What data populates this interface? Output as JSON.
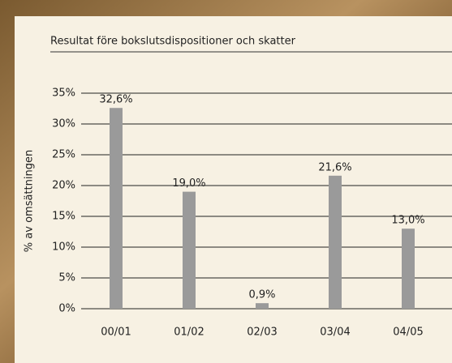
{
  "chart_data": {
    "type": "bar",
    "title": "Resultat före bokslutsdispositioner och skatter",
    "ylabel": "% av omsättningen",
    "categories": [
      "00/01",
      "01/02",
      "02/03",
      "03/04",
      "04/05"
    ],
    "values": [
      32.6,
      19.0,
      0.9,
      21.6,
      13.0
    ],
    "value_labels": [
      "32,6%",
      "19,0%",
      "0,9%",
      "21,6%",
      "13,0%"
    ],
    "color": "#9a9a9a",
    "ylim": [
      0,
      35
    ],
    "yticks": [
      {
        "value": 0,
        "label": "0%"
      },
      {
        "value": 5,
        "label": "5%"
      },
      {
        "value": 10,
        "label": "10%"
      },
      {
        "value": 15,
        "label": "15%"
      },
      {
        "value": 20,
        "label": "20%"
      },
      {
        "value": 25,
        "label": "25%"
      },
      {
        "value": 30,
        "label": "30%"
      },
      {
        "value": 35,
        "label": "35%"
      }
    ],
    "grid": true
  }
}
